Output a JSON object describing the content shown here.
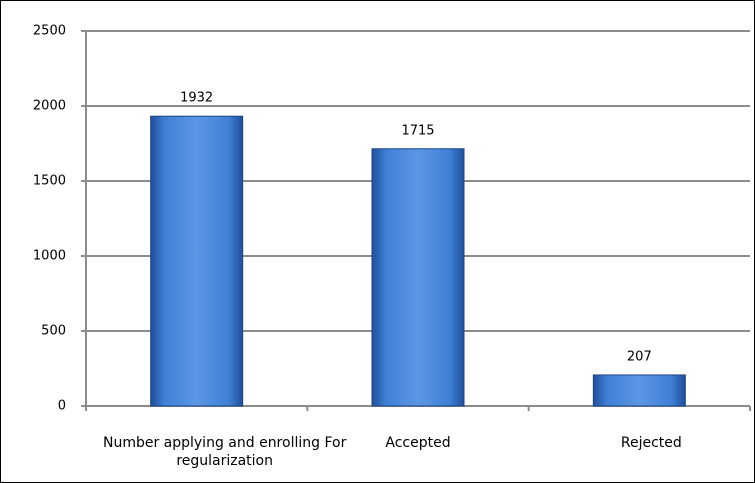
{
  "chart_data": {
    "type": "bar",
    "categories": [
      "Number applying and enrolling For regularization",
      "Accepted",
      "Rejected"
    ],
    "values": [
      1932,
      1715,
      207
    ],
    "color": "#3f7fd6",
    "ylim": [
      0,
      2500
    ],
    "yticks": [
      0,
      500,
      1000,
      1500,
      2000,
      2500
    ],
    "grid": true
  }
}
